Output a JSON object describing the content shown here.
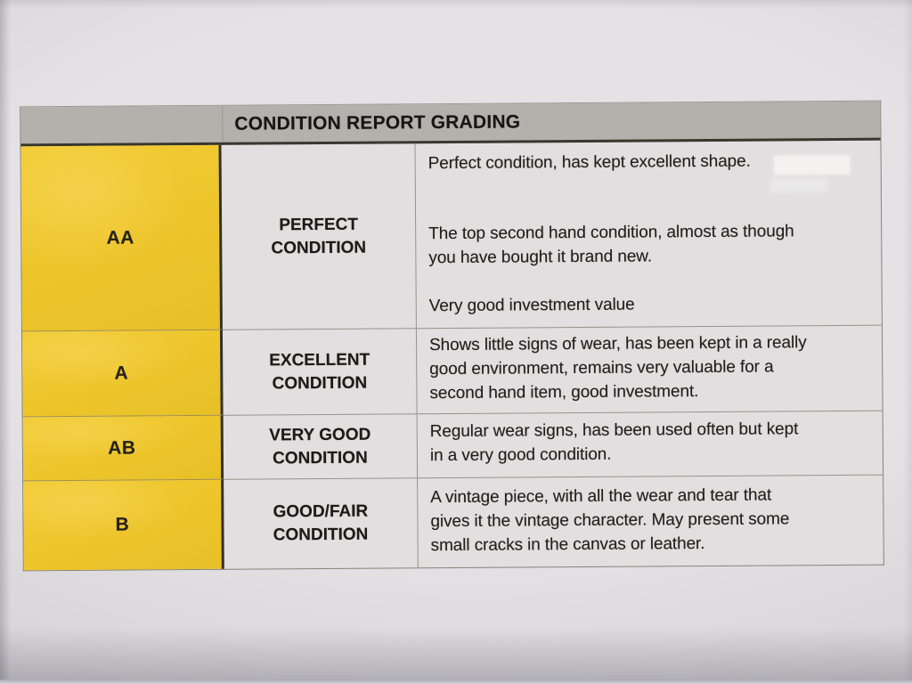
{
  "colors": {
    "paper": "#e4e2e5",
    "header_gray": "#b4b0ac",
    "grade_yellow": "#edc52b",
    "text": "#1e1d1b"
  },
  "table": {
    "title": "CONDITION REPORT GRADING",
    "rows": [
      {
        "grade": "AA",
        "label_lines": [
          "PERFECT",
          "CONDITION"
        ],
        "paragraphs": [
          "Perfect condition, has kept excellent shape.",
          "The top second hand condition, almost as though\nyou have bought it brand new.",
          "Very good investment value"
        ]
      },
      {
        "grade": "A",
        "label_lines": [
          "EXCELLENT",
          "CONDITION"
        ],
        "paragraphs": [
          "Shows little signs of wear, has been kept in a really\ngood environment, remains very valuable for a\nsecond hand item, good investment."
        ]
      },
      {
        "grade": "AB",
        "label_lines": [
          "VERY GOOD",
          "CONDITION"
        ],
        "paragraphs": [
          "Regular wear signs, has been used often but kept\nin a very good condition."
        ]
      },
      {
        "grade": "B",
        "label_lines": [
          "GOOD/FAIR",
          "CONDITION"
        ],
        "paragraphs": [
          "A vintage piece, with all the wear and tear that\ngives it the vintage character. May present some\nsmall cracks in the canvas or leather."
        ]
      }
    ]
  }
}
